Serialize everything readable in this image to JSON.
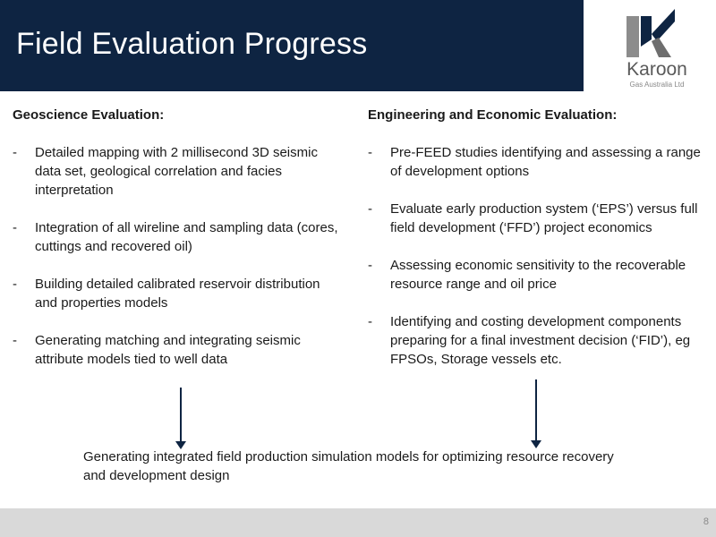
{
  "header": {
    "title": "Field Evaluation Progress",
    "background_color": "#0e2442"
  },
  "logo": {
    "name": "Karoon",
    "subtitle": "Gas Australia Ltd"
  },
  "left_column": {
    "heading": "Geoscience Evaluation:",
    "items": [
      "Detailed mapping with 2 millisecond 3D seismic data set, geological correlation and facies interpretation",
      "Integration of all wireline and sampling data (cores, cuttings and recovered oil)",
      "Building detailed calibrated reservoir distribution and properties models",
      "Generating matching and integrating seismic attribute models tied to well data"
    ]
  },
  "right_column": {
    "heading": "Engineering and Economic Evaluation:",
    "items": [
      "Pre-FEED studies identifying and assessing a range of development options",
      "Evaluate early production system (‘EPS’) versus full field development (‘FFD’) project economics",
      "Assessing economic sensitivity to the recoverable resource range and oil price",
      "Identifying and costing development components preparing for a final investment decision (‘FID’), eg FPSOs, Storage vessels etc."
    ]
  },
  "bullet_marker": "-",
  "summary": "Generating integrated field production simulation models for optimizing resource recovery and development design",
  "footer": {
    "page_number": "8"
  }
}
